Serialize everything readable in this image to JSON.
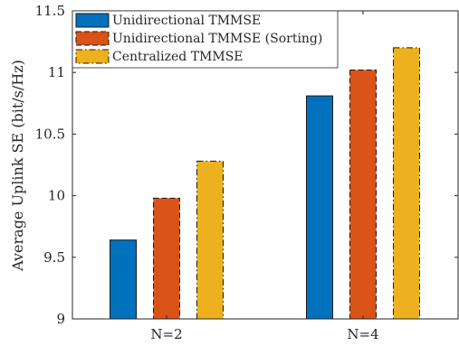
{
  "chart_data": {
    "type": "bar",
    "title": "",
    "xlabel": "",
    "ylabel": "Average Uplink SE (bit/s/Hz)",
    "categories": [
      "N=2",
      "N=4"
    ],
    "ylim": [
      9,
      11.5
    ],
    "yticks": [
      9,
      9.5,
      10,
      10.5,
      11,
      11.5
    ],
    "ytick_labels": [
      "9",
      "9.5",
      "10",
      "10.5",
      "11",
      "11.5"
    ],
    "grid": false,
    "legend_position": "top-left",
    "series": [
      {
        "name": "Unidirectional TMMSE",
        "values": [
          9.64,
          10.81
        ],
        "color": "#0072BD",
        "line_style": "solid"
      },
      {
        "name": "Unidirectional TMMSE (Sorting)",
        "values": [
          9.98,
          11.02
        ],
        "color": "#D95319",
        "line_style": "dashed"
      },
      {
        "name": "Centralized TMMSE",
        "values": [
          10.28,
          11.2
        ],
        "color": "#EDB120",
        "line_style": "dashdot"
      }
    ]
  }
}
